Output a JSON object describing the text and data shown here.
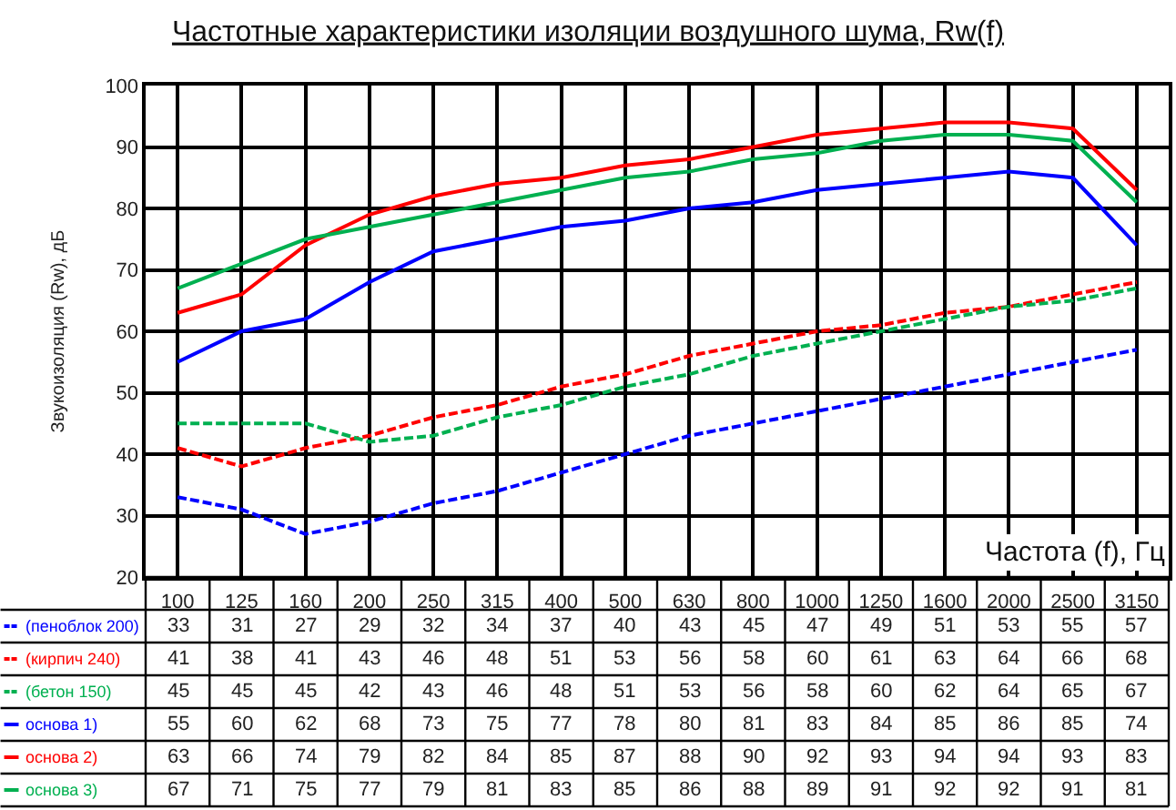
{
  "chart_data": {
    "type": "line",
    "title": "Частотные характеристики изоляции воздушного шума, Rw(f)",
    "xlabel": "Частота (f), Гц",
    "ylabel": "Звукоизоляция (Rw), дБ",
    "categories": [
      "100",
      "125",
      "160",
      "200",
      "250",
      "315",
      "400",
      "500",
      "630",
      "800",
      "1000",
      "1250",
      "1600",
      "2000",
      "2500",
      "3150"
    ],
    "series": [
      {
        "name": "(пеноблок 200)",
        "color": "#0000ff",
        "line_style": "dashed",
        "values": [
          33,
          31,
          27,
          29,
          32,
          34,
          37,
          40,
          43,
          45,
          47,
          49,
          51,
          53,
          55,
          57
        ]
      },
      {
        "name": "(кирпич 240)",
        "color": "#ff0000",
        "line_style": "dashed",
        "values": [
          41,
          38,
          41,
          43,
          46,
          48,
          51,
          53,
          56,
          58,
          60,
          61,
          63,
          64,
          66,
          68
        ]
      },
      {
        "name": "(бетон 150)",
        "color": "#00b050",
        "line_style": "dashed",
        "values": [
          45,
          45,
          45,
          42,
          43,
          46,
          48,
          51,
          53,
          56,
          58,
          60,
          62,
          64,
          65,
          67
        ]
      },
      {
        "name": "основа 1)",
        "color": "#0000ff",
        "line_style": "solid",
        "values": [
          55,
          60,
          62,
          68,
          73,
          75,
          77,
          78,
          80,
          81,
          83,
          84,
          85,
          86,
          85,
          74
        ]
      },
      {
        "name": "основа 2)",
        "color": "#ff0000",
        "line_style": "solid",
        "values": [
          63,
          66,
          74,
          79,
          82,
          84,
          85,
          87,
          88,
          90,
          92,
          93,
          94,
          94,
          93,
          83
        ]
      },
      {
        "name": "основа 3)",
        "color": "#00b050",
        "line_style": "solid",
        "values": [
          67,
          71,
          75,
          77,
          79,
          81,
          83,
          85,
          86,
          88,
          89,
          91,
          92,
          92,
          91,
          81
        ]
      }
    ],
    "ylim": [
      20,
      100
    ],
    "yticks": [
      20,
      30,
      40,
      50,
      60,
      70,
      80,
      90,
      100
    ],
    "grid": true,
    "legend": "left",
    "data_labels": true
  }
}
